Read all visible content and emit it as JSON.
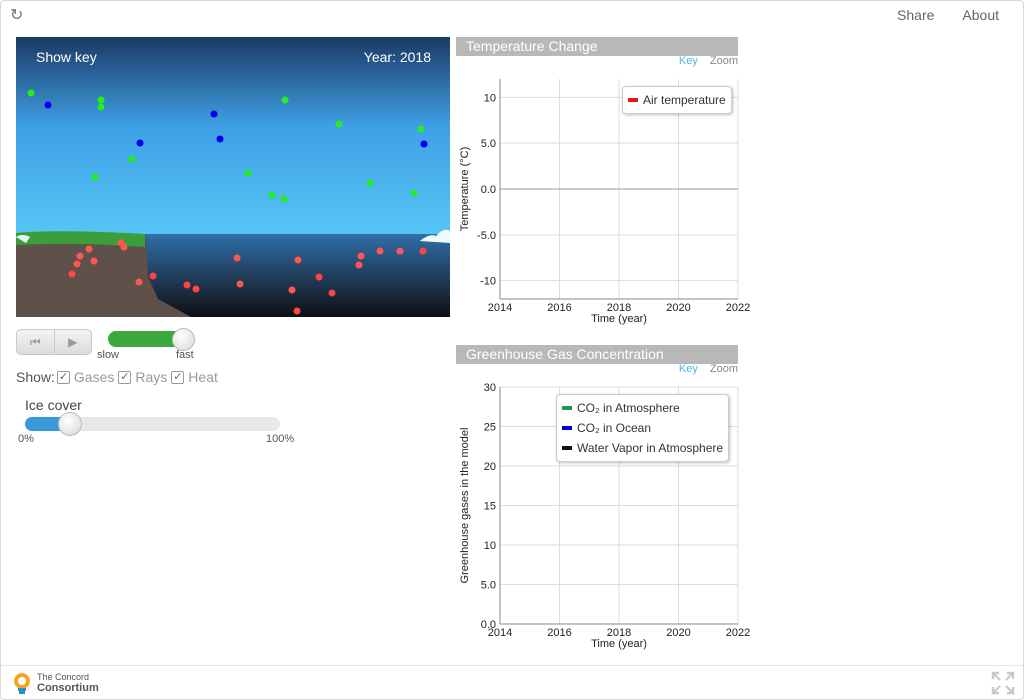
{
  "header": {
    "share_label": "Share",
    "about_label": "About"
  },
  "simulation": {
    "show_key_label": "Show key",
    "year_label": "Year: 2018"
  },
  "playback": {
    "slow_label": "slow",
    "fast_label": "fast"
  },
  "show": {
    "label": "Show:",
    "options": [
      {
        "label": "Gases",
        "checked": true
      },
      {
        "label": "Rays",
        "checked": true
      },
      {
        "label": "Heat",
        "checked": true
      }
    ]
  },
  "ice": {
    "title": "Ice cover",
    "min_label": "0%",
    "max_label": "100%",
    "value_percent": 13
  },
  "graphs": {
    "key_label": "Key",
    "zoom_label": "Zoom",
    "temperature": {
      "title": "Temperature Change",
      "xlabel": "Time (year)",
      "ylabel": "Temperature (°C)",
      "x_ticks": [
        "2014",
        "2016",
        "2018",
        "2020",
        "2022"
      ],
      "y_ticks": [
        "10",
        "5.0",
        "0.0",
        "-5.0",
        "-10"
      ],
      "legend": [
        {
          "name": "Air temperature",
          "color": "#e31a1c"
        }
      ]
    },
    "greenhouse": {
      "title": "Greenhouse Gas Concentration",
      "xlabel": "Time (year)",
      "ylabel": "Greenhouse gases in the model",
      "x_ticks": [
        "2014",
        "2016",
        "2018",
        "2020",
        "2022"
      ],
      "y_ticks": [
        "30",
        "25",
        "20",
        "15",
        "10",
        "5.0",
        "0.0"
      ],
      "legend": [
        {
          "name": "CO₂ in Atmosphere",
          "color": "#1a9850"
        },
        {
          "name": "CO₂ in Ocean",
          "color": "#0000cc"
        },
        {
          "name": "Water Vapor in Atmosphere",
          "color": "#111111"
        }
      ]
    }
  },
  "chart_data": [
    {
      "type": "line",
      "title": "Temperature Change",
      "xlabel": "Time (year)",
      "ylabel": "Temperature (°C)",
      "xlim": [
        2014,
        2022
      ],
      "ylim": [
        -12,
        12
      ],
      "x_ticks": [
        2014,
        2016,
        2018,
        2020,
        2022
      ],
      "y_ticks": [
        10,
        5,
        0,
        -5,
        -10
      ],
      "grid": true,
      "legend_position": "top-right",
      "series": [
        {
          "name": "Air temperature",
          "color": "#e31a1c",
          "x": [],
          "y": []
        }
      ]
    },
    {
      "type": "line",
      "title": "Greenhouse Gas Concentration",
      "xlabel": "Time (year)",
      "ylabel": "Greenhouse gases in the model",
      "xlim": [
        2014,
        2022
      ],
      "ylim": [
        0,
        30
      ],
      "x_ticks": [
        2014,
        2016,
        2018,
        2020,
        2022
      ],
      "y_ticks": [
        30,
        25,
        20,
        15,
        10,
        5,
        0
      ],
      "grid": true,
      "legend_position": "top-right",
      "series": [
        {
          "name": "CO₂ in Atmosphere",
          "color": "#1a9850",
          "x": [],
          "y": []
        },
        {
          "name": "CO₂ in Ocean",
          "color": "#0000cc",
          "x": [],
          "y": []
        },
        {
          "name": "Water Vapor in Atmosphere",
          "color": "#111111",
          "x": [],
          "y": []
        }
      ]
    }
  ],
  "footer": {
    "logo_line1": "The Concord",
    "logo_line2": "Consortium"
  }
}
